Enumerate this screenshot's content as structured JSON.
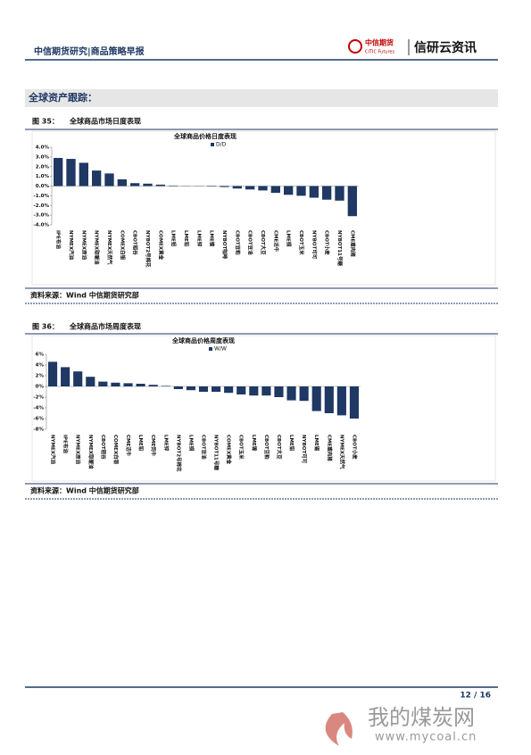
{
  "header": {
    "title": "中信期货研究|商品策略早报",
    "logo": "中信期货",
    "logo_sub": "CITIC Futures",
    "brand": "信研云资讯"
  },
  "section": "全球资产跟踪：",
  "figures": [
    {
      "label": "图 35：",
      "caption": "全球商品市场日度表现",
      "source": "资料来源：Wind  中信期货研究部"
    },
    {
      "label": "图 36：",
      "caption": "全球商品市场周度表现",
      "source": "资料来源：Wind  中信期货研究部"
    }
  ],
  "chart_data": [
    {
      "type": "bar",
      "title": "全球商品价格日度表现",
      "legend": "D/D",
      "color": "#1f3864",
      "categories": [
        "IPE布油",
        "NYMEX汽油",
        "NYMEX原油",
        "NYMEX取暖油",
        "NYMEX天然气",
        "COMEX白银",
        "CBOT稻谷",
        "NYBOT2号棉花",
        "COMEX黄金",
        "LME铝",
        "LME铅",
        "LME锌",
        "LME镍",
        "NYBOT咖啡",
        "CBOT豆粕",
        "CBOT豆油",
        "CBOT大豆",
        "CME活牛",
        "LME铜",
        "CBOT玉米",
        "NYBOT可可",
        "CBOT小麦",
        "NYBOT11号糖",
        "CME瘦肉猪"
      ],
      "values": [
        2.9,
        2.8,
        2.4,
        1.6,
        1.3,
        0.7,
        0.3,
        0.25,
        0.15,
        0.05,
        0.02,
        -0.02,
        -0.05,
        -0.1,
        -0.25,
        -0.35,
        -0.45,
        -0.7,
        -0.9,
        -1.0,
        -1.2,
        -1.4,
        -1.5,
        -3.1
      ],
      "ylim": [
        -4,
        4
      ],
      "yticks": [
        {
          "value": 4,
          "label": "4.0%"
        },
        {
          "value": 3,
          "label": "3.0%"
        },
        {
          "value": 2,
          "label": "2.0%"
        },
        {
          "value": 1,
          "label": "1.0%"
        },
        {
          "value": 0,
          "label": "0.0%"
        },
        {
          "value": -1,
          "label": "-1.0%"
        },
        {
          "value": -2,
          "label": "-2.0%"
        },
        {
          "value": -3,
          "label": "-3.0%"
        },
        {
          "value": -4,
          "label": "-4.0%"
        }
      ]
    },
    {
      "type": "bar",
      "title": "全球商品价格周度表现",
      "legend": "W/W",
      "color": "#1f3864",
      "categories": [
        "NYMEX汽油",
        "IPE布油",
        "NYMEX原油",
        "NYMEX取暖油",
        "CBOT稻谷",
        "COMEX白银",
        "CME活牛",
        "LME铅",
        "CME饲牛",
        "LME锌",
        "NYBOT2号棉花",
        "LME铜",
        "CBOT豆油",
        "NYBOT11号糖",
        "COMEX黄金",
        "CBOT玉米",
        "LME镍",
        "CBOT豆粕",
        "CBOT大豆",
        "LME铝",
        "NYBOT可可",
        "LME锡",
        "CME瘦肉猪",
        "NYMEX天然气",
        "CBOT小麦"
      ],
      "values": [
        4.6,
        3.6,
        2.8,
        1.8,
        0.9,
        0.7,
        0.6,
        0.5,
        0.3,
        0.1,
        -0.5,
        -0.7,
        -1.0,
        -1.0,
        -1.2,
        -1.5,
        -1.7,
        -1.7,
        -2.0,
        -2.6,
        -2.7,
        -4.6,
        -5.0,
        -5.4,
        -6.0
      ],
      "ylim": [
        -8,
        6
      ],
      "yticks": [
        {
          "value": 6,
          "label": "6%"
        },
        {
          "value": 4,
          "label": "4%"
        },
        {
          "value": 2,
          "label": "2%"
        },
        {
          "value": 0,
          "label": "0%"
        },
        {
          "value": -2,
          "label": "-2%"
        },
        {
          "value": -4,
          "label": "-4%"
        },
        {
          "value": -6,
          "label": "-6%"
        },
        {
          "value": -8,
          "label": "-8%"
        }
      ]
    }
  ],
  "footer": {
    "page": "12 / 16"
  },
  "watermark": {
    "name": "我的煤炭网",
    "url": "www.mycoal.cn"
  }
}
